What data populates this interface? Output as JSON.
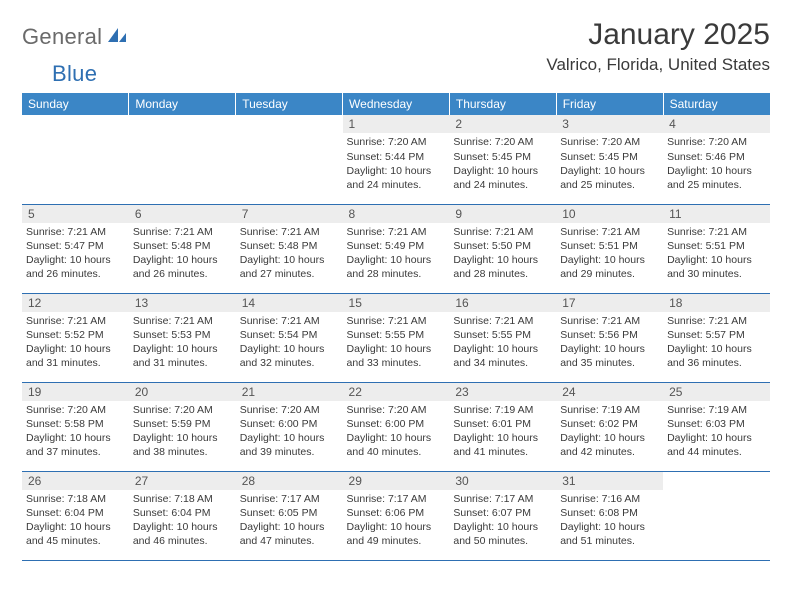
{
  "brand": {
    "part1": "General",
    "part2": "Blue"
  },
  "colors": {
    "header_bg": "#3b86c6",
    "header_text": "#ffffff",
    "row_border": "#2e6fb2",
    "daynum_bg": "#ededed",
    "text": "#3a3a3a",
    "logo_gray": "#6a6a6a",
    "logo_blue": "#2e6fb2",
    "page_bg": "#ffffff"
  },
  "typography": {
    "title_fontsize": 30,
    "location_fontsize": 17,
    "header_fontsize": 12,
    "daynum_fontsize": 12,
    "body_fontsize": 10.5
  },
  "title": "January 2025",
  "location": "Valrico, Florida, United States",
  "weekdays": [
    "Sunday",
    "Monday",
    "Tuesday",
    "Wednesday",
    "Thursday",
    "Friday",
    "Saturday"
  ],
  "weeks": [
    [
      {
        "empty": true
      },
      {
        "empty": true
      },
      {
        "empty": true
      },
      {
        "day": "1",
        "sunrise": "Sunrise: 7:20 AM",
        "sunset": "Sunset: 5:44 PM",
        "daylight": "Daylight: 10 hours and 24 minutes."
      },
      {
        "day": "2",
        "sunrise": "Sunrise: 7:20 AM",
        "sunset": "Sunset: 5:45 PM",
        "daylight": "Daylight: 10 hours and 24 minutes."
      },
      {
        "day": "3",
        "sunrise": "Sunrise: 7:20 AM",
        "sunset": "Sunset: 5:45 PM",
        "daylight": "Daylight: 10 hours and 25 minutes."
      },
      {
        "day": "4",
        "sunrise": "Sunrise: 7:20 AM",
        "sunset": "Sunset: 5:46 PM",
        "daylight": "Daylight: 10 hours and 25 minutes."
      }
    ],
    [
      {
        "day": "5",
        "sunrise": "Sunrise: 7:21 AM",
        "sunset": "Sunset: 5:47 PM",
        "daylight": "Daylight: 10 hours and 26 minutes."
      },
      {
        "day": "6",
        "sunrise": "Sunrise: 7:21 AM",
        "sunset": "Sunset: 5:48 PM",
        "daylight": "Daylight: 10 hours and 26 minutes."
      },
      {
        "day": "7",
        "sunrise": "Sunrise: 7:21 AM",
        "sunset": "Sunset: 5:48 PM",
        "daylight": "Daylight: 10 hours and 27 minutes."
      },
      {
        "day": "8",
        "sunrise": "Sunrise: 7:21 AM",
        "sunset": "Sunset: 5:49 PM",
        "daylight": "Daylight: 10 hours and 28 minutes."
      },
      {
        "day": "9",
        "sunrise": "Sunrise: 7:21 AM",
        "sunset": "Sunset: 5:50 PM",
        "daylight": "Daylight: 10 hours and 28 minutes."
      },
      {
        "day": "10",
        "sunrise": "Sunrise: 7:21 AM",
        "sunset": "Sunset: 5:51 PM",
        "daylight": "Daylight: 10 hours and 29 minutes."
      },
      {
        "day": "11",
        "sunrise": "Sunrise: 7:21 AM",
        "sunset": "Sunset: 5:51 PM",
        "daylight": "Daylight: 10 hours and 30 minutes."
      }
    ],
    [
      {
        "day": "12",
        "sunrise": "Sunrise: 7:21 AM",
        "sunset": "Sunset: 5:52 PM",
        "daylight": "Daylight: 10 hours and 31 minutes."
      },
      {
        "day": "13",
        "sunrise": "Sunrise: 7:21 AM",
        "sunset": "Sunset: 5:53 PM",
        "daylight": "Daylight: 10 hours and 31 minutes."
      },
      {
        "day": "14",
        "sunrise": "Sunrise: 7:21 AM",
        "sunset": "Sunset: 5:54 PM",
        "daylight": "Daylight: 10 hours and 32 minutes."
      },
      {
        "day": "15",
        "sunrise": "Sunrise: 7:21 AM",
        "sunset": "Sunset: 5:55 PM",
        "daylight": "Daylight: 10 hours and 33 minutes."
      },
      {
        "day": "16",
        "sunrise": "Sunrise: 7:21 AM",
        "sunset": "Sunset: 5:55 PM",
        "daylight": "Daylight: 10 hours and 34 minutes."
      },
      {
        "day": "17",
        "sunrise": "Sunrise: 7:21 AM",
        "sunset": "Sunset: 5:56 PM",
        "daylight": "Daylight: 10 hours and 35 minutes."
      },
      {
        "day": "18",
        "sunrise": "Sunrise: 7:21 AM",
        "sunset": "Sunset: 5:57 PM",
        "daylight": "Daylight: 10 hours and 36 minutes."
      }
    ],
    [
      {
        "day": "19",
        "sunrise": "Sunrise: 7:20 AM",
        "sunset": "Sunset: 5:58 PM",
        "daylight": "Daylight: 10 hours and 37 minutes."
      },
      {
        "day": "20",
        "sunrise": "Sunrise: 7:20 AM",
        "sunset": "Sunset: 5:59 PM",
        "daylight": "Daylight: 10 hours and 38 minutes."
      },
      {
        "day": "21",
        "sunrise": "Sunrise: 7:20 AM",
        "sunset": "Sunset: 6:00 PM",
        "daylight": "Daylight: 10 hours and 39 minutes."
      },
      {
        "day": "22",
        "sunrise": "Sunrise: 7:20 AM",
        "sunset": "Sunset: 6:00 PM",
        "daylight": "Daylight: 10 hours and 40 minutes."
      },
      {
        "day": "23",
        "sunrise": "Sunrise: 7:19 AM",
        "sunset": "Sunset: 6:01 PM",
        "daylight": "Daylight: 10 hours and 41 minutes."
      },
      {
        "day": "24",
        "sunrise": "Sunrise: 7:19 AM",
        "sunset": "Sunset: 6:02 PM",
        "daylight": "Daylight: 10 hours and 42 minutes."
      },
      {
        "day": "25",
        "sunrise": "Sunrise: 7:19 AM",
        "sunset": "Sunset: 6:03 PM",
        "daylight": "Daylight: 10 hours and 44 minutes."
      }
    ],
    [
      {
        "day": "26",
        "sunrise": "Sunrise: 7:18 AM",
        "sunset": "Sunset: 6:04 PM",
        "daylight": "Daylight: 10 hours and 45 minutes."
      },
      {
        "day": "27",
        "sunrise": "Sunrise: 7:18 AM",
        "sunset": "Sunset: 6:04 PM",
        "daylight": "Daylight: 10 hours and 46 minutes."
      },
      {
        "day": "28",
        "sunrise": "Sunrise: 7:17 AM",
        "sunset": "Sunset: 6:05 PM",
        "daylight": "Daylight: 10 hours and 47 minutes."
      },
      {
        "day": "29",
        "sunrise": "Sunrise: 7:17 AM",
        "sunset": "Sunset: 6:06 PM",
        "daylight": "Daylight: 10 hours and 49 minutes."
      },
      {
        "day": "30",
        "sunrise": "Sunrise: 7:17 AM",
        "sunset": "Sunset: 6:07 PM",
        "daylight": "Daylight: 10 hours and 50 minutes."
      },
      {
        "day": "31",
        "sunrise": "Sunrise: 7:16 AM",
        "sunset": "Sunset: 6:08 PM",
        "daylight": "Daylight: 10 hours and 51 minutes."
      },
      {
        "empty": true
      }
    ]
  ]
}
